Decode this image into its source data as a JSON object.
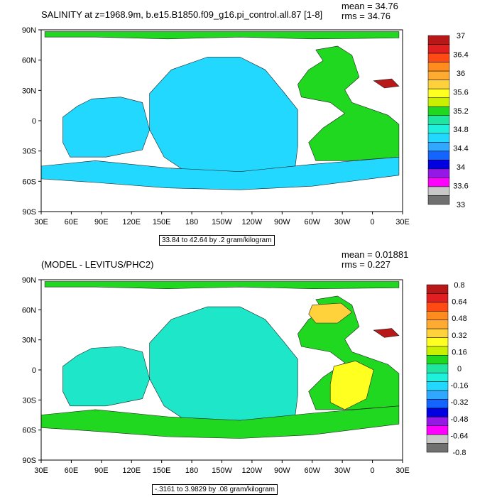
{
  "chart_data": [
    {
      "type": "heatmap",
      "title": "SALINITY at z=1968.9m, b.e15.B1850.f09_g16.pi_control.all.87 [1-8]",
      "mean_label": "mean = 34.76",
      "rms_label": "rms = 34.76",
      "caption": "33.84 to 42.64 by .2 gram/kilogram",
      "lat_ticks": [
        "90N",
        "60N",
        "30N",
        "0",
        "30S",
        "60S",
        "90S"
      ],
      "lon_ticks": [
        "30E",
        "60E",
        "90E",
        "120E",
        "150E",
        "180",
        "150W",
        "120W",
        "90W",
        "60W",
        "30W",
        "0",
        "30E"
      ],
      "colorbar_colors": [
        "#b81818",
        "#e02020",
        "#ff4a14",
        "#ff8c1e",
        "#ffaa30",
        "#ffd23c",
        "#ffff20",
        "#c8f000",
        "#20d820",
        "#1ee6a0",
        "#1ef0dc",
        "#22d8ff",
        "#30a8ff",
        "#1464ff",
        "#0000e0",
        "#9618e6",
        "#ff00ff",
        "#c8c8c8",
        "#707070"
      ],
      "colorbar_labels": [
        "37",
        "36.4",
        "36",
        "35.6",
        "35.2",
        "34.8",
        "34.4",
        "34",
        "33.6",
        "33"
      ],
      "regions": [
        {
          "name": "Arctic",
          "color": "#20d820"
        },
        {
          "name": "Atlantic",
          "color": "#20d820"
        },
        {
          "name": "Pacific",
          "color": "#22d8ff"
        },
        {
          "name": "Indian",
          "color": "#22d8ff"
        },
        {
          "name": "Southern",
          "color": "#22d8ff"
        },
        {
          "name": "Mediterranean",
          "color": "#b81818"
        }
      ]
    },
    {
      "type": "heatmap",
      "title": "(MODEL - LEVITUS/PHC2)",
      "mean_label": "mean = 0.01881",
      "rms_label": "rms = 0.227",
      "caption": "-.3161 to 3.9829 by .08 gram/kilogram",
      "lat_ticks": [
        "90N",
        "60N",
        "30N",
        "0",
        "30S",
        "60S",
        "90S"
      ],
      "lon_ticks": [
        "30E",
        "60E",
        "90E",
        "120E",
        "150E",
        "180",
        "150W",
        "120W",
        "90W",
        "60W",
        "30W",
        "0",
        "30E"
      ],
      "colorbar_colors": [
        "#b81818",
        "#e02020",
        "#ff4a14",
        "#ff8c1e",
        "#ffaa30",
        "#ffd23c",
        "#ffff20",
        "#c8f000",
        "#20d820",
        "#1ee6a0",
        "#1ef0dc",
        "#22d8ff",
        "#30a8ff",
        "#1464ff",
        "#0000e0",
        "#9618e6",
        "#ff00ff",
        "#c8c8c8",
        "#707070"
      ],
      "colorbar_labels": [
        "0.8",
        "0.64",
        "0.48",
        "0.32",
        "0.16",
        "0",
        "-0.16",
        "-0.32",
        "-0.48",
        "-0.64",
        "-0.8"
      ],
      "regions": [
        {
          "name": "Arctic",
          "color": "#20d820"
        },
        {
          "name": "Atlantic",
          "color": "#20d820"
        },
        {
          "name": "Pacific",
          "color": "#1ee6c8"
        },
        {
          "name": "Indian",
          "color": "#1ee6c8"
        },
        {
          "name": "Southern",
          "color": "#20d820"
        },
        {
          "name": "Mediterranean",
          "color": "#b81818"
        },
        {
          "name": "Labrador-Nordic",
          "color": "#ffd23c"
        },
        {
          "name": "South-Atlantic",
          "color": "#ffff20"
        }
      ]
    }
  ]
}
